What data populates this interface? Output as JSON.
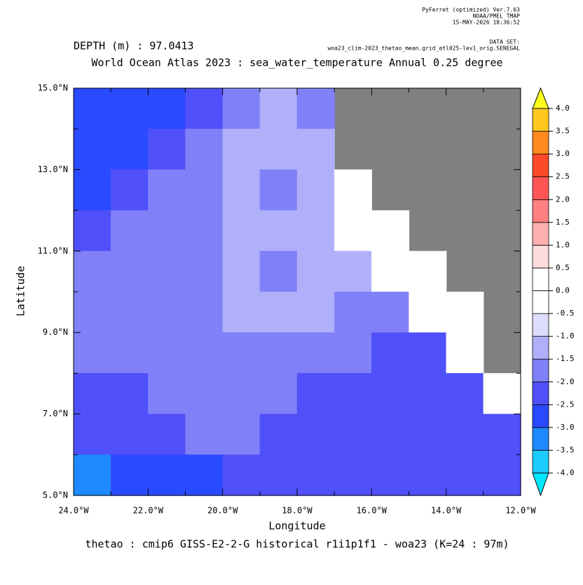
{
  "chart_data": {
    "type": "heatmap",
    "header_lines": [
      "PyFerret (optimized) Ver.7.63",
      "NOAA/PMEL TMAP",
      "15-MAY-2026 18:36:52"
    ],
    "dataset_label": "DATA SET:",
    "dataset": "woa23_clim-2023_thetao_mean.grid_atl025-lev1_orig.SENEGAL",
    "depth": "DEPTH (m) : 97.0413",
    "title": "World Ocean Atlas 2023 : sea_water_temperature Annual  0.25 degree",
    "subtitle": "thetao : cmip6 GISS-E2-2-G historical r1i1p1f1 - woa23  (K=24 : 97m)",
    "x_label": "Longitude",
    "y_label": "Latitude",
    "xlim": [
      -24,
      -12
    ],
    "ylim": [
      5,
      15
    ],
    "xticks": [
      {
        "value": -24,
        "label": "24.0°W"
      },
      {
        "value": -22,
        "label": "22.0°W"
      },
      {
        "value": -20,
        "label": "20.0°W"
      },
      {
        "value": -18,
        "label": "18.0°W"
      },
      {
        "value": -16,
        "label": "16.0°W"
      },
      {
        "value": -14,
        "label": "14.0°W"
      },
      {
        "value": -12,
        "label": "12.0°W"
      }
    ],
    "xminorticks": [
      -23,
      -21,
      -19,
      -17,
      -15,
      -13
    ],
    "yticks": [
      {
        "value": 5,
        "label": "5.0°N"
      },
      {
        "value": 7,
        "label": "7.0°N"
      },
      {
        "value": 9,
        "label": "9.0°N"
      },
      {
        "value": 11,
        "label": "11.0°N"
      },
      {
        "value": 13,
        "label": "13.0°N"
      },
      {
        "value": 15,
        "label": "15.0°N"
      }
    ],
    "yminorticks": [
      6,
      8,
      10,
      12,
      14
    ],
    "values": [
      [
        -2.7,
        -2.7,
        -2.7,
        -2.2,
        -1.7,
        -1.2,
        -1.7,
        null,
        null,
        null,
        null,
        null
      ],
      [
        -2.7,
        -2.7,
        -2.2,
        -1.7,
        -1.2,
        -1.2,
        -1.2,
        null,
        null,
        null,
        null,
        null
      ],
      [
        -2.7,
        -2.2,
        -1.7,
        -1.7,
        -1.2,
        -1.7,
        -1.2,
        0.2,
        null,
        null,
        null,
        null
      ],
      [
        -2.2,
        -1.7,
        -1.7,
        -1.7,
        -1.2,
        -1.2,
        -1.2,
        0.2,
        0.2,
        null,
        null,
        null
      ],
      [
        -1.7,
        -1.7,
        -1.7,
        -1.7,
        -1.2,
        -1.7,
        -1.2,
        -1.2,
        0.2,
        0.2,
        null,
        null
      ],
      [
        -1.7,
        -1.7,
        -1.7,
        -1.7,
        -1.2,
        -1.2,
        -1.2,
        -1.7,
        -1.7,
        0.2,
        0.2,
        null
      ],
      [
        -1.7,
        -1.7,
        -1.7,
        -1.7,
        -1.7,
        -1.7,
        -1.7,
        -1.7,
        -2.2,
        -2.2,
        0.2,
        null
      ],
      [
        -2.2,
        -2.2,
        -1.7,
        -1.7,
        -1.7,
        -1.7,
        -2.2,
        -2.2,
        -2.2,
        -2.2,
        -2.2,
        0.2
      ],
      [
        -2.2,
        -2.2,
        -2.2,
        -1.7,
        -1.7,
        -2.2,
        -2.2,
        -2.2,
        -2.2,
        -2.2,
        -2.2,
        -2.2
      ],
      [
        -3.2,
        -2.7,
        -2.7,
        -2.7,
        -2.2,
        -2.2,
        -2.2,
        -2.2,
        -2.2,
        -2.2,
        -2.2,
        -2.2
      ]
    ],
    "land_color": "#808080",
    "colorbar_ticks": [
      {
        "value": 4,
        "label": "4.0"
      },
      {
        "value": 3.5,
        "label": "3.5"
      },
      {
        "value": 3,
        "label": "3.0"
      },
      {
        "value": 2.5,
        "label": "2.5"
      },
      {
        "value": 2,
        "label": "2.0"
      },
      {
        "value": 1.5,
        "label": "1.5"
      },
      {
        "value": 1,
        "label": "1.0"
      },
      {
        "value": 0.5,
        "label": "0.5"
      },
      {
        "value": 0,
        "label": "0.0"
      },
      {
        "value": -0.5,
        "label": "-0.5"
      },
      {
        "value": -1,
        "label": "-1.0"
      },
      {
        "value": -1.5,
        "label": "-1.5"
      },
      {
        "value": -2,
        "label": "-2.0"
      },
      {
        "value": -2.5,
        "label": "-2.5"
      },
      {
        "value": -3,
        "label": "-3.0"
      },
      {
        "value": -3.5,
        "label": "-3.5"
      },
      {
        "value": -4,
        "label": "-4.0"
      }
    ],
    "colors": [
      "#1ecbff",
      "#1e8aff",
      "#2a4aff",
      "#5050fa",
      "#8080f8",
      "#b0b0fa",
      "#dcdcfc",
      "#ffffff",
      "#ffffff",
      "#ffdcdc",
      "#ffb0b0",
      "#ff8080",
      "#ff5555",
      "#ff4a2a",
      "#ff8a1e",
      "#ffc81e"
    ],
    "under_color": "#00e8ff",
    "over_color": "#ffff1e"
  }
}
